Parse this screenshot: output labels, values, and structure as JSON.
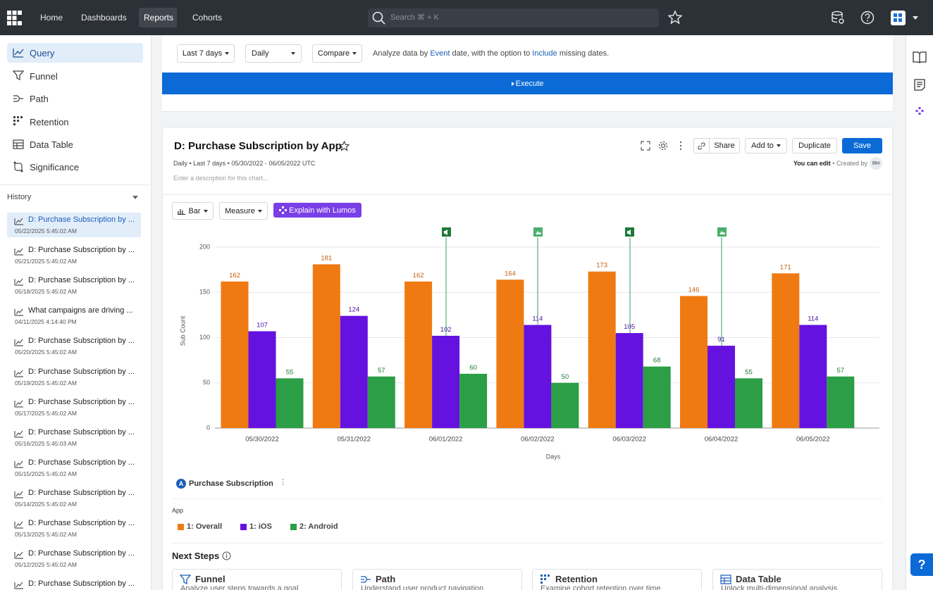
{
  "nav": {
    "items": [
      "Home",
      "Dashboards",
      "Reports",
      "Cohorts"
    ],
    "search": "Search ⌘ + K"
  },
  "sidebar": {
    "menu": [
      "Query",
      "Funnel",
      "Path",
      "Retention",
      "Data Table",
      "Significance"
    ],
    "history_title": "History",
    "history": [
      {
        "title": "D: Purchase Subscription by ...",
        "date": "05/22/2025 5:45:02 AM"
      },
      {
        "title": "D: Purchase Subscription by ...",
        "date": "05/21/2025 5:45:02 AM"
      },
      {
        "title": "D: Purchase Subscription by ...",
        "date": "05/18/2025 5:45:02 AM"
      },
      {
        "title": "What campaigns are driving ...",
        "date": "04/11/2025 4:14:40 PM"
      },
      {
        "title": "D: Purchase Subscription by ...",
        "date": "05/20/2025 5:45:02 AM"
      },
      {
        "title": "D: Purchase Subscription by ...",
        "date": "05/19/2025 5:45:02 AM"
      },
      {
        "title": "D: Purchase Subscription by ...",
        "date": "05/17/2025 5:45:02 AM"
      },
      {
        "title": "D: Purchase Subscription by ...",
        "date": "05/16/2025 5:45:03 AM"
      },
      {
        "title": "D: Purchase Subscription by ...",
        "date": "05/15/2025 5:45:02 AM"
      },
      {
        "title": "D: Purchase Subscription by ...",
        "date": "05/14/2025 5:45:02 AM"
      },
      {
        "title": "D: Purchase Subscription by ...",
        "date": "05/13/2025 5:45:02 AM"
      },
      {
        "title": "D: Purchase Subscription by ...",
        "date": "05/12/2025 5:45:02 AM"
      },
      {
        "title": "D: Purchase Subscription by ..."
      }
    ]
  },
  "query_bar": {
    "range": "Last 7 days",
    "interval": "Daily",
    "compare": "Compare",
    "note_parts": [
      "Analyze data by",
      "Event",
      "date, with the option to",
      "Include",
      "missing dates."
    ],
    "execute": "Execute"
  },
  "report": {
    "title": "D: Purchase Subscription by App",
    "meta": "Daily • Last 7 days • 05/30/2022 - 06/05/2022 UTC",
    "description": "Enter a description for this chart...",
    "buttons": [
      "Share",
      "Add to",
      "Duplicate",
      "Save"
    ],
    "permission": "You can edit",
    "created_by": "• Created by",
    "avatar": "RH",
    "chart_type": "Bar",
    "measure": "Measure",
    "lumos": "Explain with Lumos"
  },
  "chart_data": {
    "type": "bar",
    "y_label": "Sub Count",
    "x_label": "Days",
    "categories": [
      "05/30/2022",
      "05/31/2022",
      "06/01/2022",
      "06/02/2022",
      "06/03/2022",
      "06/04/2022",
      "06/05/2022"
    ],
    "series": [
      {
        "name": "1: Overall",
        "color": "#f07a12",
        "values": [
          162,
          181,
          162,
          164,
          173,
          146,
          171
        ]
      },
      {
        "name": "1: iOS",
        "color": "#6511e0",
        "values": [
          107,
          124,
          102,
          114,
          105,
          91,
          114
        ]
      },
      {
        "name": "2: Android",
        "color": "#2b9e46",
        "values": [
          55,
          57,
          60,
          50,
          68,
          55,
          57
        ]
      }
    ],
    "ylim": [
      0,
      200
    ],
    "yticks": [
      0,
      50,
      100,
      150,
      200
    ],
    "grid": true
  },
  "event": {
    "badge": "A",
    "name": "Purchase Subscription"
  },
  "group_by": "App",
  "next_steps": {
    "title": "Next Steps",
    "cards": [
      {
        "title": "Funnel",
        "text": "Analyze user steps towards a goal"
      },
      {
        "title": "Path",
        "text": "Understand user product navigation"
      },
      {
        "title": "Retention",
        "text": "Examine cohort retention over time"
      },
      {
        "title": "Data Table",
        "text": "Unlock multi-dimensional analysis"
      }
    ]
  },
  "help": "?"
}
